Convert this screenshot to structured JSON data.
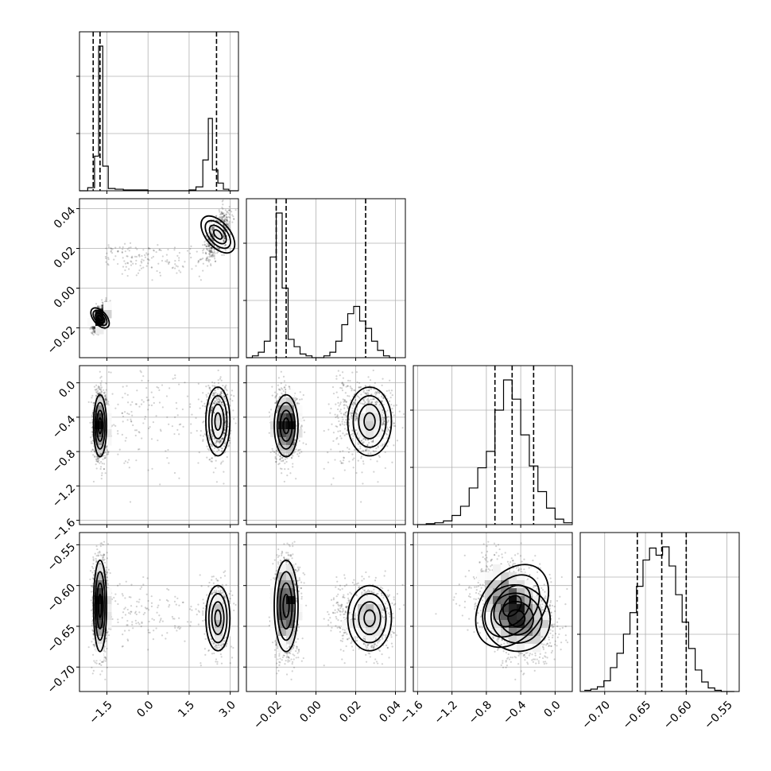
{
  "chart_data": {
    "type": "corner",
    "n_params": 4,
    "grid": true,
    "params": [
      {
        "range": [
          -2.5,
          3.3
        ],
        "ticks": [
          -1.5,
          0.0,
          1.5,
          3.0
        ],
        "tick_labels": [
          "−1.5",
          "0.0",
          "1.5",
          "3.0"
        ],
        "quantiles": [
          -2.0,
          -1.75,
          2.5
        ],
        "histogram": {
          "bin_edges": [
            -2.5,
            -2.2,
            -1.95,
            -1.8,
            -1.65,
            -1.45,
            -1.2,
            -0.9,
            -0.6,
            -0.3,
            0.0,
            0.3,
            0.6,
            0.9,
            1.2,
            1.5,
            1.75,
            2.0,
            2.2,
            2.35,
            2.55,
            2.75,
            2.95,
            3.15,
            3.3
          ],
          "counts": [
            0,
            4,
            45,
            188,
            32,
            3,
            2,
            1,
            1,
            1,
            0,
            0,
            0,
            0,
            0,
            1,
            5,
            40,
            94,
            27,
            10,
            2,
            0,
            0
          ]
        }
      },
      {
        "range": [
          -0.035,
          0.045
        ],
        "ticks": [
          -0.02,
          0.0,
          0.02,
          0.04
        ],
        "tick_labels": [
          "−0.02",
          "0.00",
          "0.02",
          "0.04"
        ],
        "quantiles": [
          -0.02,
          -0.015,
          0.025
        ],
        "histogram": {
          "bin_edges": [
            -0.035,
            -0.032,
            -0.029,
            -0.026,
            -0.023,
            -0.02,
            -0.017,
            -0.014,
            -0.011,
            -0.008,
            -0.005,
            -0.002,
            0.001,
            0.004,
            0.007,
            0.01,
            0.013,
            0.016,
            0.019,
            0.022,
            0.025,
            0.028,
            0.031,
            0.034,
            0.037,
            0.04
          ],
          "counts": [
            0,
            1,
            3,
            9,
            55,
            79,
            38,
            10,
            6,
            2,
            1,
            0,
            0,
            1,
            3,
            9,
            18,
            24,
            28,
            20,
            16,
            9,
            4,
            1,
            0
          ]
        }
      },
      {
        "range": [
          -1.65,
          0.2
        ],
        "ticks": [
          -1.6,
          -1.2,
          -0.8,
          -0.4,
          0.0
        ],
        "tick_labels": [
          "−1.6",
          "−1.2",
          "−0.8",
          "−0.4",
          "0.0"
        ],
        "quantiles": [
          -0.7,
          -0.5,
          -0.25
        ],
        "histogram": {
          "bin_edges": [
            -1.6,
            -1.5,
            -1.4,
            -1.3,
            -1.2,
            -1.1,
            -1.0,
            -0.9,
            -0.8,
            -0.7,
            -0.6,
            -0.5,
            -0.4,
            -0.3,
            -0.2,
            -0.1,
            0.0,
            0.1,
            0.2
          ],
          "counts": [
            0,
            1,
            2,
            4,
            10,
            20,
            40,
            62,
            80,
            125,
            158,
            137,
            98,
            64,
            36,
            18,
            6,
            2
          ]
        }
      },
      {
        "range": [
          -0.73,
          -0.535
        ],
        "ticks": [
          -0.7,
          -0.65,
          -0.6,
          -0.55
        ],
        "tick_labels": [
          "−0.70",
          "−0.65",
          "−0.60",
          "−0.55"
        ],
        "quantiles": [
          -0.66,
          -0.63,
          -0.6
        ],
        "histogram": {
          "bin_edges": [
            -0.725,
            -0.717,
            -0.709,
            -0.701,
            -0.693,
            -0.685,
            -0.677,
            -0.669,
            -0.661,
            -0.653,
            -0.645,
            -0.637,
            -0.629,
            -0.621,
            -0.613,
            -0.605,
            -0.597,
            -0.589,
            -0.581,
            -0.573,
            -0.565,
            -0.557,
            -0.549,
            -0.541
          ],
          "counts": [
            1,
            2,
            4,
            9,
            20,
            32,
            48,
            66,
            88,
            110,
            120,
            114,
            121,
            105,
            81,
            58,
            36,
            18,
            8,
            3,
            1,
            0,
            0
          ]
        }
      }
    ],
    "modes": [
      {
        "weight": 0.68,
        "mean": [
          -1.75,
          -0.015,
          -0.5,
          -0.625
        ],
        "sd": [
          0.12,
          0.003,
          0.18,
          0.028
        ],
        "tilt": [
          0,
          0,
          0,
          -0.4
        ]
      },
      {
        "weight": 0.32,
        "mean": [
          2.55,
          0.027,
          -0.45,
          -0.64
        ],
        "sd": [
          0.22,
          0.0055,
          0.2,
          0.02
        ],
        "tilt": [
          0,
          0,
          0,
          -0.5
        ]
      }
    ],
    "bridge_fraction": 0.06,
    "colors": {
      "axis": "#000000",
      "grid": "#b0b0b0",
      "hist": "#000000",
      "quantile": "#000000",
      "scatter": "#000000",
      "contour": "#000000"
    }
  }
}
